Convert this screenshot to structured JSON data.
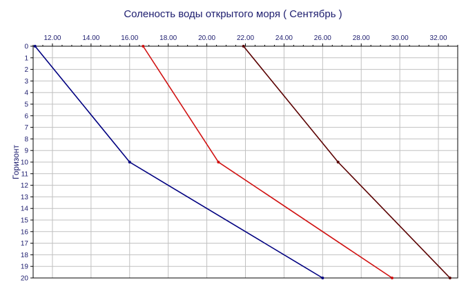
{
  "chart_data": {
    "type": "line",
    "title": "Соленость воды открытого моря    ( Сентябрь )",
    "xlabel": "",
    "ylabel": "Горизонт",
    "xlim": [
      11.0,
      33.0
    ],
    "ylim": [
      20,
      0
    ],
    "y_inverted": true,
    "x_axis_position": "top",
    "x_ticks": [
      "12.00",
      "14.00",
      "16.00",
      "18.00",
      "20.00",
      "22.00",
      "24.00",
      "26.00",
      "28.00",
      "30.00",
      "32.00"
    ],
    "y_ticks": [
      "0",
      "1",
      "2",
      "3",
      "4",
      "5",
      "6",
      "7",
      "8",
      "9",
      "10",
      "11",
      "12",
      "13",
      "14",
      "15",
      "16",
      "17",
      "18",
      "19",
      "20"
    ],
    "grid": true,
    "series": [
      {
        "color": "#000080",
        "points": [
          [
            11.1,
            0
          ],
          [
            16.0,
            10
          ],
          [
            26.0,
            20
          ]
        ]
      },
      {
        "color": "#d01010",
        "points": [
          [
            16.7,
            0
          ],
          [
            20.6,
            10
          ],
          [
            29.6,
            20
          ]
        ]
      },
      {
        "color": "#5a0000",
        "points": [
          [
            21.9,
            0
          ],
          [
            26.8,
            10
          ],
          [
            32.6,
            20
          ]
        ]
      }
    ]
  }
}
